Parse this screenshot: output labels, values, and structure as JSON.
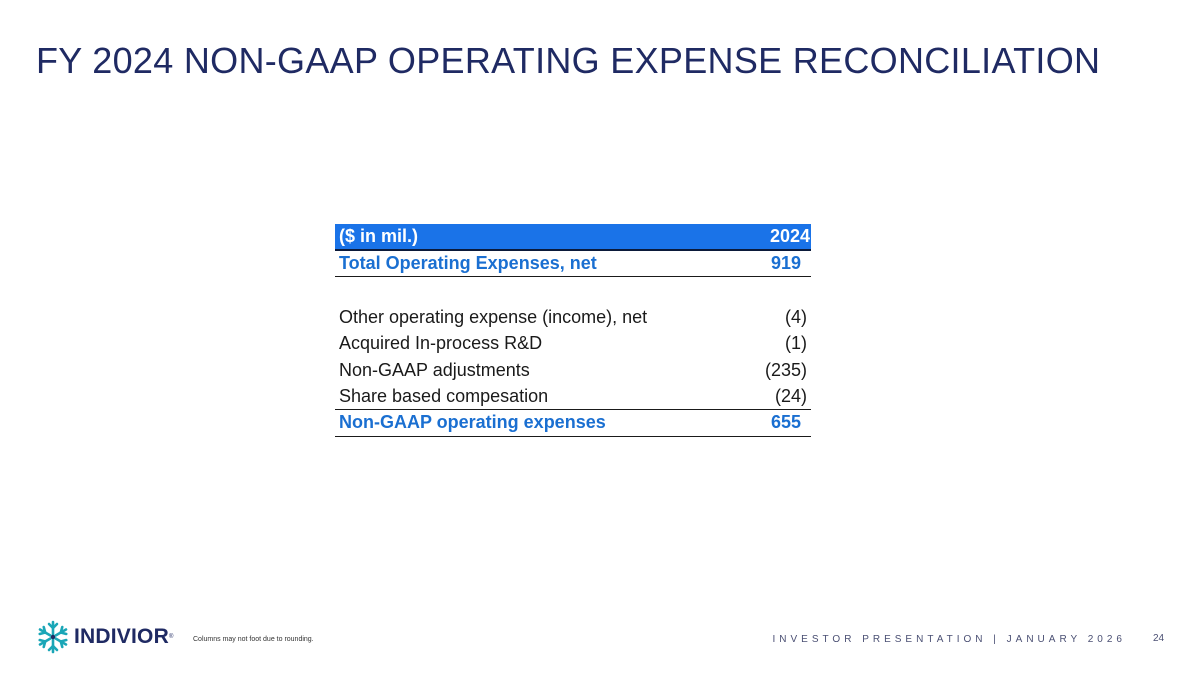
{
  "title": "FY 2024 NON-GAAP OPERATING EXPENSE RECONCILIATION",
  "table": {
    "header": {
      "label": "($ in mil.)",
      "year": "2024"
    },
    "total": {
      "label": "Total Operating Expenses, net",
      "value": "919"
    },
    "items": [
      {
        "label": "Other operating expense (income), net",
        "value": "(4)"
      },
      {
        "label": "Acquired In-process R&D",
        "value": "(1)"
      },
      {
        "label": "Non-GAAP adjustments",
        "value": "(235)"
      },
      {
        "label": "Share based compesation",
        "value": "(24)"
      }
    ],
    "result": {
      "label": "Non-GAAP operating expenses",
      "value": "655"
    }
  },
  "logo": {
    "text": "INDIVIOR",
    "mark": "®"
  },
  "footnote": "Columns may not foot due to rounding.",
  "footer": {
    "label": "INVESTOR PRESENTATION | JANUARY 2026",
    "page_number": "24"
  },
  "colors": {
    "title": "#1f2a63",
    "header_bg": "#1a73e8",
    "accent_text": "#1a6fd1",
    "logo_teal": "#1aa6b7"
  }
}
